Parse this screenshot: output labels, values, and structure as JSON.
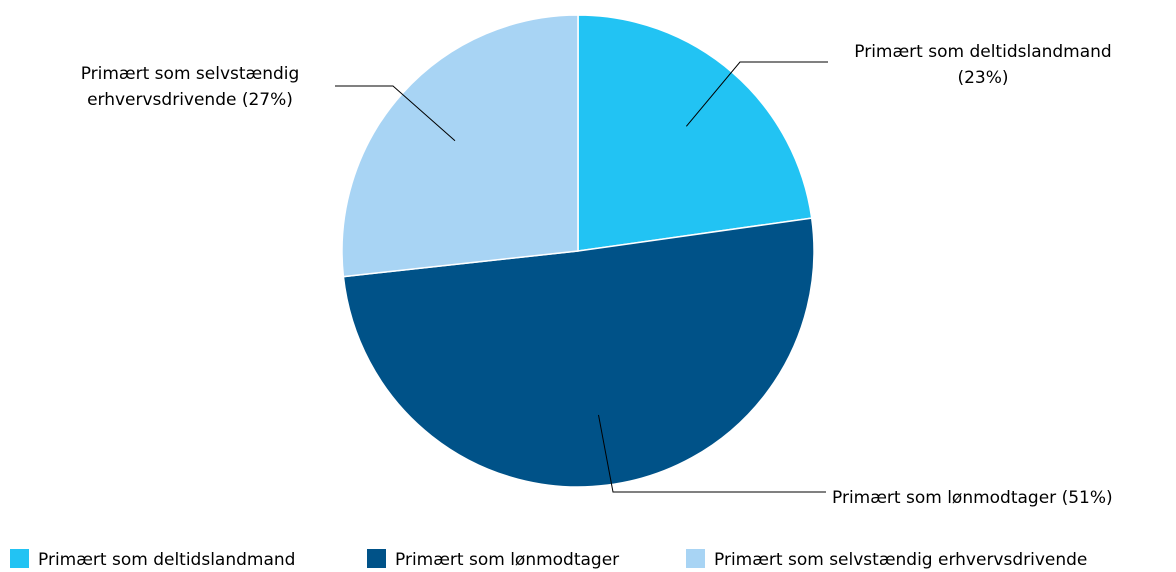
{
  "chart_data": {
    "type": "pie",
    "categories": [
      "Primært som deltidslandmand",
      "Primært som lønmodtager",
      "Primært som selvstændig erhvervsdrivende"
    ],
    "values": [
      23,
      51,
      27
    ],
    "value_labels": [
      [
        "Primært som deltidslandmand",
        "(23%)"
      ],
      [
        "Primært som lønmodtager (51%)"
      ],
      [
        "Primært som selvstændig",
        "erhvervsdrivende (27%)"
      ]
    ],
    "colors": [
      "#22c3f3",
      "#005288",
      "#a8d4f4"
    ],
    "legend": "bottom"
  }
}
